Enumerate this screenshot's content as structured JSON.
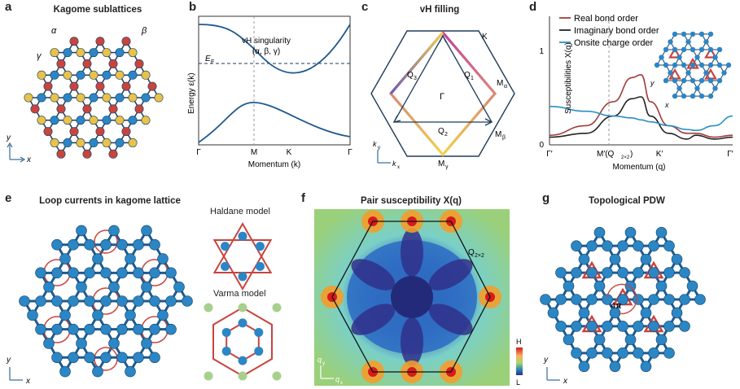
{
  "panels": {
    "a": {
      "label": "a",
      "title": "Kagome sublattices",
      "alpha": "α",
      "beta": "β",
      "gamma": "γ",
      "y": "y",
      "x": "x"
    },
    "b": {
      "label": "b",
      "vh_line1": "vH singularity",
      "vh_line2": "(α, β, γ)",
      "ef": "E",
      "ef_sub": "F",
      "ylabel": "Energy ε(k)",
      "xlabel": "Momentum (k)",
      "ticks": [
        "Γ",
        "M",
        "K",
        "Γ"
      ]
    },
    "c": {
      "label": "c",
      "title": "vH filling",
      "K": "K",
      "Ma": "M",
      "Ma_sub": "α",
      "Mb": "M",
      "Mb_sub": "β",
      "Mg": "M",
      "Mg_sub": "γ",
      "Gamma": "Γ",
      "Q1": "Q",
      "Q1_sub": "1",
      "Q2": "Q",
      "Q2_sub": "2",
      "Q3": "Q",
      "Q3_sub": "3",
      "ky": "k",
      "ky_sub": "y",
      "kx": "k",
      "kx_sub": "x"
    },
    "d": {
      "label": "d",
      "legend": [
        "Real bond order",
        "Imaginary bond order",
        "Onsite charge order"
      ],
      "ylabel": "Susceptibilities X(q)",
      "xlabel": "Momentum (q)",
      "xticks": [
        "Γ′",
        "M′(Q",
        "2×2",
        ")",
        "K′",
        "Γ′"
      ],
      "yticks": [
        "0",
        "1"
      ],
      "y": "y",
      "x": "x"
    },
    "e": {
      "label": "e",
      "title": "Loop currents in kagome lattice",
      "haldane": "Haldane model",
      "varma": "Varma model",
      "y": "y",
      "x": "x"
    },
    "f": {
      "label": "f",
      "title": "Pair susceptibility X(q)",
      "q": "Q",
      "q_sub": "2×2",
      "cb_high": "H",
      "cb_low": "L",
      "qy": "q",
      "qy_sub": "y",
      "qx": "q",
      "qx_sub": "x"
    },
    "g": {
      "label": "g",
      "title": "Topological PDW",
      "flux": "4π",
      "y": "y",
      "x": "x"
    }
  },
  "colors": {
    "bond": "#1f5a8f",
    "site": "#2b86c5",
    "red": "#c8443e",
    "yellow": "#e9c24a",
    "green": "#a8d08d",
    "real": "#a23a3a",
    "imag": "#222222",
    "onsite": "#2a8fc0"
  },
  "chart_data": {
    "type": "line",
    "title": "",
    "xlabel": "Momentum (q)",
    "ylabel": "Susceptibilities X(q)",
    "categories": [
      "Γ′",
      "M′(Q2×2)",
      "K′",
      "Γ′"
    ],
    "ylim": [
      0,
      1.2
    ],
    "series": [
      {
        "name": "Real bond order",
        "x": [
          0,
          0.2,
          0.35,
          0.45,
          0.5,
          0.55,
          0.65,
          0.75,
          0.8,
          0.9,
          1.0
        ],
        "values": [
          0.1,
          0.2,
          0.45,
          0.7,
          0.73,
          0.45,
          0.2,
          0.12,
          0.12,
          0.08,
          0.1
        ]
      },
      {
        "name": "Imaginary bond order",
        "x": [
          0,
          0.2,
          0.35,
          0.45,
          0.5,
          0.55,
          0.65,
          0.75,
          0.8,
          0.9,
          1.0
        ],
        "values": [
          0.08,
          0.12,
          0.3,
          0.48,
          0.5,
          0.3,
          0.12,
          0.06,
          0.1,
          0.06,
          0.08
        ]
      },
      {
        "name": "Onsite charge order",
        "x": [
          0,
          0.2,
          0.35,
          0.45,
          0.5,
          0.55,
          0.65,
          0.75,
          0.8,
          0.9,
          1.0
        ],
        "values": [
          0.4,
          0.35,
          0.3,
          0.28,
          0.26,
          0.24,
          0.2,
          0.16,
          0.15,
          0.2,
          0.3
        ]
      }
    ]
  }
}
